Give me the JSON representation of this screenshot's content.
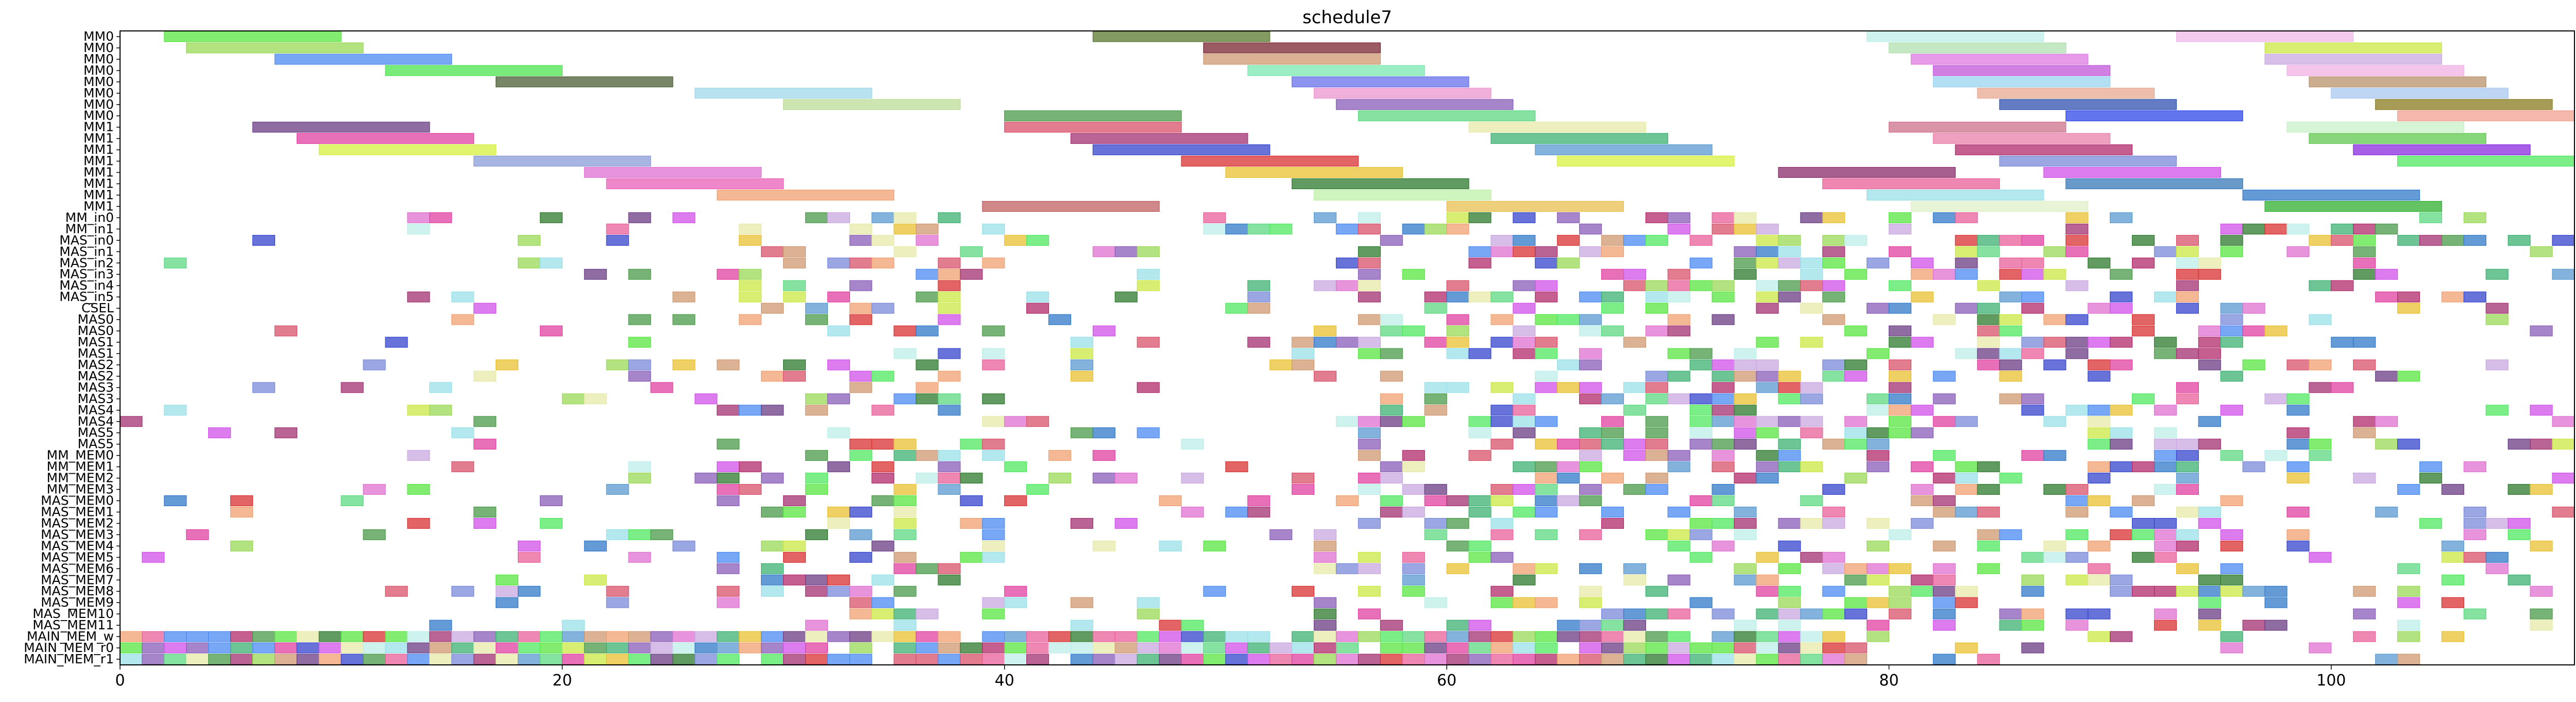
{
  "chart_data": {
    "type": "gantt",
    "title": "schedule7",
    "xlabel": "",
    "ylabel": "",
    "xlim": [
      0,
      111
    ],
    "x_ticks": [
      0,
      20,
      40,
      60,
      80,
      100
    ],
    "grid": false,
    "legend": "none",
    "rows": [
      "MM0",
      "MM0",
      "MM0",
      "MM0",
      "MM0",
      "MM0",
      "MM0",
      "MM0",
      "MM1",
      "MM1",
      "MM1",
      "MM1",
      "MM1",
      "MM1",
      "MM1",
      "MM1",
      "MM_in0",
      "MM_in1",
      "MAS_in0",
      "MAS_in1",
      "MAS_in2",
      "MAS_in3",
      "MAS_in4",
      "MAS_in5",
      "CSEL",
      "MAS0",
      "MAS0",
      "MAS1",
      "MAS1",
      "MAS2",
      "MAS2",
      "MAS3",
      "MAS3",
      "MAS4",
      "MAS4",
      "MAS5",
      "MAS5",
      "MM_MEM0",
      "MM_MEM1",
      "MM_MEM2",
      "MM_MEM3",
      "MAS_MEM0",
      "MAS_MEM1",
      "MAS_MEM2",
      "MAS_MEM3",
      "MAS_MEM4",
      "MAS_MEM5",
      "MAS_MEM6",
      "MAS_MEM7",
      "MAS_MEM8",
      "MAS_MEM9",
      "MAS_MEM10",
      "MAS_MEM11",
      "MAIN_MEM_w",
      "MAIN_MEM_r0",
      "MAIN_MEM_r1"
    ],
    "long_tasks": [
      {
        "row": 0,
        "start": 2,
        "dur": 8,
        "color": "#57e640"
      },
      {
        "row": 0,
        "start": 44,
        "dur": 8,
        "color": "#5a7a2e"
      },
      {
        "row": 0,
        "start": 79,
        "dur": 8,
        "color": "#bdeee8"
      },
      {
        "row": 0,
        "start": 93,
        "dur": 8,
        "color": "#f0b8e8"
      },
      {
        "row": 1,
        "start": 3,
        "dur": 8,
        "color": "#9ad855"
      },
      {
        "row": 1,
        "start": 49,
        "dur": 8,
        "color": "#7a2430"
      },
      {
        "row": 1,
        "start": 80,
        "dur": 8,
        "color": "#b2e0b0"
      },
      {
        "row": 1,
        "start": 97,
        "dur": 8,
        "color": "#cbe844"
      },
      {
        "row": 2,
        "start": 7,
        "dur": 8,
        "color": "#4a8af2"
      },
      {
        "row": 2,
        "start": 49,
        "dur": 8,
        "color": "#cf9870"
      },
      {
        "row": 2,
        "start": 81,
        "dur": 8,
        "color": "#de7ae0"
      },
      {
        "row": 2,
        "start": 97,
        "dur": 8,
        "color": "#c9a8e0"
      },
      {
        "row": 3,
        "start": 12,
        "dur": 8,
        "color": "#4ce44e"
      },
      {
        "row": 3,
        "start": 51,
        "dur": 8,
        "color": "#79e8b0"
      },
      {
        "row": 3,
        "start": 82,
        "dur": 8,
        "color": "#c056d8"
      },
      {
        "row": 3,
        "start": 98,
        "dur": 8,
        "color": "#f0b0e4"
      },
      {
        "row": 4,
        "start": 17,
        "dur": 8,
        "color": "#4a5e34"
      },
      {
        "row": 4,
        "start": 53,
        "dur": 8,
        "color": "#6670ea"
      },
      {
        "row": 4,
        "start": 82,
        "dur": 8,
        "color": "#9ad4f0"
      },
      {
        "row": 4,
        "start": 99,
        "dur": 8,
        "color": "#b8906a"
      },
      {
        "row": 5,
        "start": 26,
        "dur": 8,
        "color": "#a0d8e8"
      },
      {
        "row": 5,
        "start": 54,
        "dur": 8,
        "color": "#ec94d0"
      },
      {
        "row": 5,
        "start": 84,
        "dur": 8,
        "color": "#e8a890"
      },
      {
        "row": 5,
        "start": 100,
        "dur": 8,
        "color": "#a8c8f0"
      },
      {
        "row": 6,
        "start": 30,
        "dur": 8,
        "color": "#bcdc96"
      },
      {
        "row": 6,
        "start": 55,
        "dur": 8,
        "color": "#8a5cb8"
      },
      {
        "row": 6,
        "start": 85,
        "dur": 8,
        "color": "#3050b0"
      },
      {
        "row": 6,
        "start": 102,
        "dur": 8,
        "color": "#8a7a20"
      },
      {
        "row": 7,
        "start": 40,
        "dur": 8,
        "color": "#4a9a48"
      },
      {
        "row": 7,
        "start": 56,
        "dur": 8,
        "color": "#5cd880"
      },
      {
        "row": 7,
        "start": 88,
        "dur": 8,
        "color": "#2e46e8"
      },
      {
        "row": 7,
        "start": 103,
        "dur": 8,
        "color": "#f0a090"
      },
      {
        "row": 8,
        "start": 6,
        "dur": 8,
        "color": "#6a3c84"
      },
      {
        "row": 8,
        "start": 40,
        "dur": 8,
        "color": "#d8506a"
      },
      {
        "row": 8,
        "start": 61,
        "dur": 8,
        "color": "#e8eaa8"
      },
      {
        "row": 8,
        "start": 80,
        "dur": 8,
        "color": "#cc708a"
      },
      {
        "row": 8,
        "start": 98,
        "dur": 8,
        "color": "#c8f0c8"
      },
      {
        "row": 9,
        "start": 8,
        "dur": 8,
        "color": "#e040a0"
      },
      {
        "row": 9,
        "start": 43,
        "dur": 8,
        "color": "#a23070"
      },
      {
        "row": 9,
        "start": 62,
        "dur": 8,
        "color": "#3cb070"
      },
      {
        "row": 9,
        "start": 82,
        "dur": 8,
        "color": "#e880a8"
      },
      {
        "row": 9,
        "start": 99,
        "dur": 8,
        "color": "#60c850"
      },
      {
        "row": 10,
        "start": 9,
        "dur": 8,
        "color": "#d6f040"
      },
      {
        "row": 10,
        "start": 44,
        "dur": 8,
        "color": "#3444cc"
      },
      {
        "row": 10,
        "start": 64,
        "dur": 8,
        "color": "#5a9ad0"
      },
      {
        "row": 10,
        "start": 83,
        "dur": 8,
        "color": "#b02a6a"
      },
      {
        "row": 10,
        "start": 101,
        "dur": 8,
        "color": "#8a2ae0"
      },
      {
        "row": 11,
        "start": 16,
        "dur": 8,
        "color": "#8a9cd8"
      },
      {
        "row": 11,
        "start": 48,
        "dur": 8,
        "color": "#d83030"
      },
      {
        "row": 11,
        "start": 65,
        "dur": 8,
        "color": "#d8f040"
      },
      {
        "row": 11,
        "start": 85,
        "dur": 8,
        "color": "#7a8ad8"
      },
      {
        "row": 11,
        "start": 103,
        "dur": 8,
        "color": "#50e860"
      },
      {
        "row": 12,
        "start": 21,
        "dur": 8,
        "color": "#e070d0"
      },
      {
        "row": 12,
        "start": 50,
        "dur": 8,
        "color": "#e8c030"
      },
      {
        "row": 12,
        "start": 75,
        "dur": 8,
        "color": "#8a2a6a"
      },
      {
        "row": 12,
        "start": 87,
        "dur": 8,
        "color": "#d050e8"
      },
      {
        "row": 13,
        "start": 22,
        "dur": 8,
        "color": "#e860b8"
      },
      {
        "row": 13,
        "start": 53,
        "dur": 8,
        "color": "#2e7a2e"
      },
      {
        "row": 13,
        "start": 77,
        "dur": 8,
        "color": "#e8609a"
      },
      {
        "row": 13,
        "start": 88,
        "dur": 8,
        "color": "#3878b8"
      },
      {
        "row": 14,
        "start": 27,
        "dur": 8,
        "color": "#f0a070"
      },
      {
        "row": 14,
        "start": 54,
        "dur": 8,
        "color": "#c0f0a8"
      },
      {
        "row": 14,
        "start": 79,
        "dur": 8,
        "color": "#98e0e8"
      },
      {
        "row": 14,
        "start": 96,
        "dur": 8,
        "color": "#3078c8"
      },
      {
        "row": 15,
        "start": 39,
        "dur": 8,
        "color": "#c06060"
      },
      {
        "row": 15,
        "start": 60,
        "dur": 8,
        "color": "#e8c050"
      },
      {
        "row": 15,
        "start": 81,
        "dur": 8,
        "color": "#e0f0c8"
      },
      {
        "row": 15,
        "start": 97,
        "dur": 8,
        "color": "#30b030"
      }
    ],
    "short_task_rows": {
      "first_row": 16,
      "last_row": 55,
      "duration": 1,
      "layout_note": "dense unit-length tasks across rows MM_in0 to MAIN_MEM_r1"
    }
  }
}
